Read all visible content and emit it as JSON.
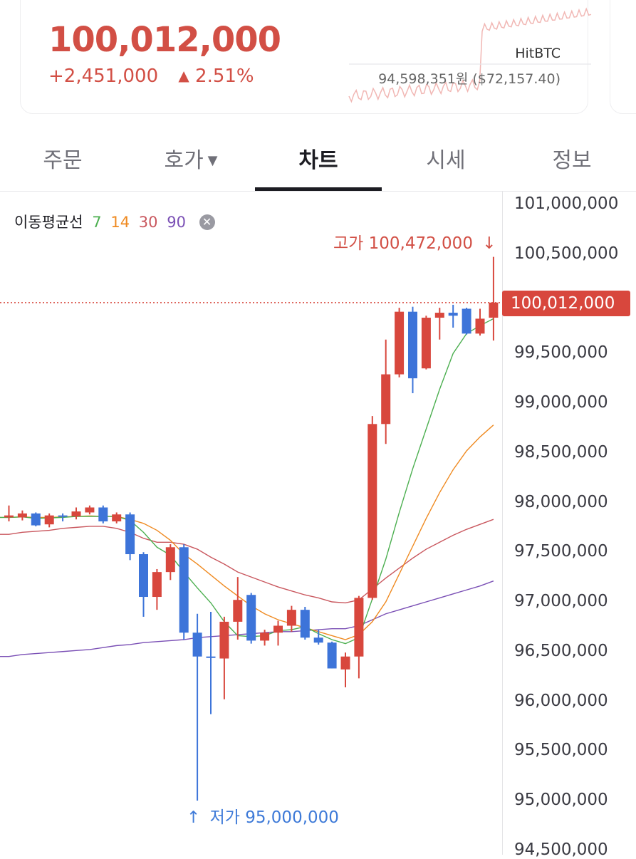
{
  "ticker": {
    "price": "100,012,000",
    "change_amount": "+2,451,000",
    "change_arrow": "▲",
    "change_percent": "2.51%",
    "exchange": "HitBTC",
    "reference_price": "94,598,351원 ($72,157.40)"
  },
  "tabs": [
    {
      "label": "주문",
      "active": false
    },
    {
      "label": "호가",
      "active": false,
      "caret": "▼"
    },
    {
      "label": "차트",
      "active": true
    },
    {
      "label": "시세",
      "active": false
    },
    {
      "label": "정보",
      "active": false
    }
  ],
  "ma_legend": {
    "title": "이동평균선",
    "periods": [
      {
        "label": "7",
        "color": "#4caf50"
      },
      {
        "label": "14",
        "color": "#ef8a21"
      },
      {
        "label": "30",
        "color": "#c9575e"
      },
      {
        "label": "90",
        "color": "#7a4fb5"
      }
    ],
    "close_icon": "close-icon"
  },
  "colors": {
    "up": "#d8473d",
    "down": "#3d74d9",
    "ma7": "#4caf50",
    "ma14": "#ef8a21",
    "ma30": "#c9575e",
    "ma90": "#7a4fb5"
  },
  "chart_data": {
    "type": "candlestick",
    "y_axis_labels": [
      "101,000,000",
      "100,500,000",
      "99,500,000",
      "99,000,000",
      "98,500,000",
      "98,000,000",
      "97,500,000",
      "97,000,000",
      "96,500,000",
      "96,000,000",
      "95,500,000",
      "95,000,000",
      "94,500,000"
    ],
    "y_axis_values": [
      101000000,
      100500000,
      99500000,
      99000000,
      98500000,
      98000000,
      97500000,
      97000000,
      96500000,
      96000000,
      95500000,
      95000000,
      94500000
    ],
    "ylim": [
      94500000,
      101100000
    ],
    "current_price_label": "100,012,000",
    "current_price": 100012000,
    "high_label": "고가 100,472,000",
    "high_arrow": "↓",
    "low_label": "저가 95,000,000",
    "low_arrow": "↑",
    "candles": [
      {
        "o": 97850000,
        "c": 97870000,
        "h": 97970000,
        "l": 97810000
      },
      {
        "o": 97850000,
        "c": 97890000,
        "h": 97920000,
        "l": 97820000
      },
      {
        "o": 97890000,
        "c": 97770000,
        "h": 97900000,
        "l": 97760000
      },
      {
        "o": 97780000,
        "c": 97870000,
        "h": 97890000,
        "l": 97750000
      },
      {
        "o": 97870000,
        "c": 97860000,
        "h": 97890000,
        "l": 97810000
      },
      {
        "o": 97860000,
        "c": 97910000,
        "h": 97950000,
        "l": 97830000
      },
      {
        "o": 97900000,
        "c": 97950000,
        "h": 97970000,
        "l": 97880000
      },
      {
        "o": 97950000,
        "c": 97810000,
        "h": 97970000,
        "l": 97790000
      },
      {
        "o": 97810000,
        "c": 97880000,
        "h": 97900000,
        "l": 97790000
      },
      {
        "o": 97880000,
        "c": 97480000,
        "h": 97900000,
        "l": 97420000
      },
      {
        "o": 97480000,
        "c": 97050000,
        "h": 97500000,
        "l": 96850000
      },
      {
        "o": 97050000,
        "c": 97300000,
        "h": 97330000,
        "l": 96920000
      },
      {
        "o": 97300000,
        "c": 97550000,
        "h": 97580000,
        "l": 97220000
      },
      {
        "o": 97550000,
        "c": 96690000,
        "h": 97580000,
        "l": 96620000
      },
      {
        "o": 96690000,
        "c": 96450000,
        "h": 96880000,
        "l": 95000000
      },
      {
        "o": 96450000,
        "c": 96440000,
        "h": 96900000,
        "l": 95870000
      },
      {
        "o": 96430000,
        "c": 96800000,
        "h": 96850000,
        "l": 96020000
      },
      {
        "o": 96800000,
        "c": 97020000,
        "h": 97250000,
        "l": 96620000
      },
      {
        "o": 97070000,
        "c": 96610000,
        "h": 97090000,
        "l": 96580000
      },
      {
        "o": 96610000,
        "c": 96690000,
        "h": 96720000,
        "l": 96560000
      },
      {
        "o": 96690000,
        "c": 96760000,
        "h": 96810000,
        "l": 96560000
      },
      {
        "o": 96760000,
        "c": 96920000,
        "h": 96960000,
        "l": 96700000
      },
      {
        "o": 96920000,
        "c": 96640000,
        "h": 96950000,
        "l": 96620000
      },
      {
        "o": 96640000,
        "c": 96590000,
        "h": 96720000,
        "l": 96570000
      },
      {
        "o": 96590000,
        "c": 96330000,
        "h": 96600000,
        "l": 96330000
      },
      {
        "o": 96320000,
        "c": 96450000,
        "h": 96490000,
        "l": 96140000
      },
      {
        "o": 96450000,
        "c": 97040000,
        "h": 97060000,
        "l": 96230000
      },
      {
        "o": 97040000,
        "c": 98790000,
        "h": 98870000,
        "l": 97020000
      },
      {
        "o": 98790000,
        "c": 99290000,
        "h": 99640000,
        "l": 98590000
      },
      {
        "o": 99290000,
        "c": 99920000,
        "h": 99960000,
        "l": 99260000
      },
      {
        "o": 99920000,
        "c": 99250000,
        "h": 99970000,
        "l": 99100000
      },
      {
        "o": 99350000,
        "c": 99860000,
        "h": 99880000,
        "l": 99340000
      },
      {
        "o": 99860000,
        "c": 99910000,
        "h": 99960000,
        "l": 99640000
      },
      {
        "o": 99910000,
        "c": 99880000,
        "h": 99990000,
        "l": 99760000
      },
      {
        "o": 99950000,
        "c": 99700000,
        "h": 99960000,
        "l": 99690000
      },
      {
        "o": 99700000,
        "c": 99850000,
        "h": 99950000,
        "l": 99680000
      },
      {
        "o": 99860000,
        "c": 100012000,
        "h": 100472000,
        "l": 99630000
      }
    ],
    "ma7": [
      97850000,
      97855000,
      97840000,
      97845000,
      97850000,
      97860000,
      97860000,
      97860000,
      97860000,
      97820000,
      97700000,
      97550000,
      97470000,
      97300000,
      97140000,
      96990000,
      96800000,
      96660000,
      96650000,
      96660000,
      96710000,
      96720000,
      96750000,
      96680000,
      96620000,
      96580000,
      96640000,
      97030000,
      97430000,
      97900000,
      98340000,
      98740000,
      99140000,
      99500000,
      99700000,
      99780000,
      99850000
    ],
    "ma14": [
      97850000,
      97855000,
      97850000,
      97850000,
      97855000,
      97860000,
      97865000,
      97860000,
      97860000,
      97830000,
      97790000,
      97720000,
      97620000,
      97480000,
      97380000,
      97270000,
      97160000,
      97060000,
      96960000,
      96880000,
      96820000,
      96780000,
      96740000,
      96700000,
      96660000,
      96620000,
      96670000,
      96800000,
      97000000,
      97280000,
      97560000,
      97840000,
      98100000,
      98330000,
      98520000,
      98660000,
      98780000
    ],
    "ma30": [
      97680000,
      97700000,
      97710000,
      97720000,
      97740000,
      97750000,
      97760000,
      97760000,
      97740000,
      97700000,
      97640000,
      97600000,
      97600000,
      97580000,
      97530000,
      97450000,
      97380000,
      97300000,
      97250000,
      97200000,
      97150000,
      97110000,
      97070000,
      97040000,
      97000000,
      96990000,
      97020000,
      97130000,
      97240000,
      97340000,
      97440000,
      97530000,
      97600000,
      97670000,
      97730000,
      97780000,
      97830000
    ],
    "ma90": [
      96450000,
      96470000,
      96480000,
      96490000,
      96500000,
      96510000,
      96520000,
      96540000,
      96560000,
      96570000,
      96590000,
      96600000,
      96610000,
      96620000,
      96640000,
      96650000,
      96660000,
      96670000,
      96680000,
      96690000,
      96700000,
      96700000,
      96710000,
      96720000,
      96730000,
      96730000,
      96760000,
      96820000,
      96880000,
      96920000,
      96960000,
      97000000,
      97040000,
      97080000,
      97120000,
      97160000,
      97210000
    ]
  }
}
